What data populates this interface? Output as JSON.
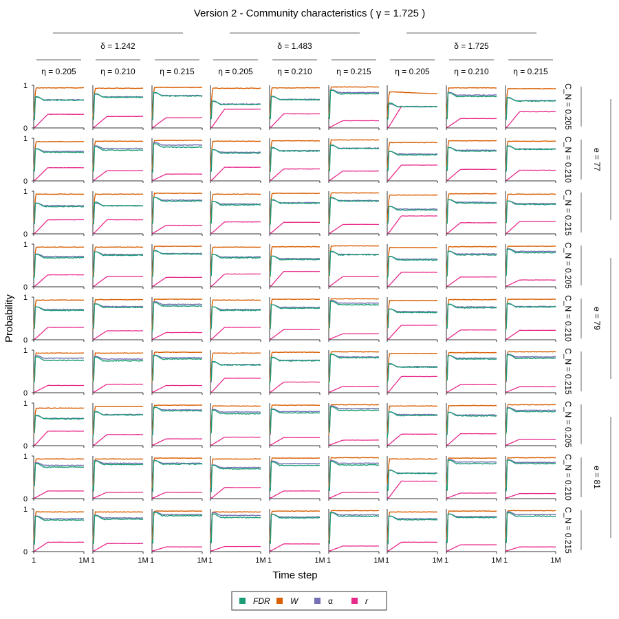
{
  "chart_data": {
    "type": "line",
    "title": "Version 2 - Community characteristics ( γ = 1.725 )",
    "xlabel": "Time step",
    "ylabel": "Probability",
    "x_ticks": [
      "1",
      "1M"
    ],
    "y_ticks": [
      "0",
      "1"
    ],
    "ylim": [
      0,
      1
    ],
    "col_groups": [
      {
        "label": "δ = 1.242",
        "cols": [
          0,
          1,
          2
        ]
      },
      {
        "label": "δ = 1.483",
        "cols": [
          3,
          4,
          5
        ]
      },
      {
        "label": "δ = 1.725",
        "cols": [
          6,
          7,
          8
        ]
      }
    ],
    "col_labels": [
      "η = 0.205",
      "η = 0.210",
      "η = 0.215",
      "η = 0.205",
      "η = 0.210",
      "η = 0.215",
      "η = 0.205",
      "η = 0.210",
      "η = 0.215"
    ],
    "row_labels": [
      "C_N = 0.205",
      "C_N = 0.210",
      "C_N = 0.215",
      "C_N = 0.205",
      "C_N = 0.210",
      "C_N = 0.215",
      "C_N = 0.205",
      "C_N = 0.210",
      "C_N = 0.215"
    ],
    "row_groups": [
      {
        "label": "e = 77",
        "rows": [
          0,
          1,
          2
        ]
      },
      {
        "label": "e = 79",
        "rows": [
          3,
          4,
          5
        ]
      },
      {
        "label": "e = 81",
        "rows": [
          6,
          7,
          8
        ]
      }
    ],
    "legend": {
      "placement": "bottom-center",
      "entries": [
        {
          "key": "fdr",
          "label": "FDR",
          "italic": true,
          "color": "#1b9e77"
        },
        {
          "key": "w",
          "label": "W",
          "italic": true,
          "color": "#d95f02"
        },
        {
          "key": "alpha",
          "label": "α",
          "italic": false,
          "color": "#7570b3"
        },
        {
          "key": "r",
          "label": "r",
          "italic": true,
          "color": "#e7298a"
        }
      ]
    },
    "series_note": "Each panel has four series vs time step (1 to 1M); steady-state values per panel below.",
    "panels": [
      {
        "row": 0,
        "col": 0,
        "W": 0.94,
        "alpha": 0.66,
        "fdr": 0.65,
        "r": 0.32
      },
      {
        "row": 0,
        "col": 1,
        "W": 0.93,
        "alpha": 0.73,
        "fdr": 0.72,
        "r": 0.27
      },
      {
        "row": 0,
        "col": 2,
        "W": 0.95,
        "alpha": 0.76,
        "fdr": 0.75,
        "r": 0.24
      },
      {
        "row": 0,
        "col": 3,
        "W": 0.93,
        "alpha": 0.56,
        "fdr": 0.55,
        "r": 0.44
      },
      {
        "row": 0,
        "col": 4,
        "W": 0.94,
        "alpha": 0.67,
        "fdr": 0.66,
        "r": 0.33
      },
      {
        "row": 0,
        "col": 5,
        "W": 0.96,
        "alpha": 0.83,
        "fdr": 0.8,
        "r": 0.17
      },
      {
        "row": 0,
        "col": 6,
        "W": 0.85,
        "alpha": 0.5,
        "fdr": 0.5,
        "r": 0.5
      },
      {
        "row": 0,
        "col": 7,
        "W": 0.94,
        "alpha": 0.77,
        "fdr": 0.74,
        "r": 0.22
      },
      {
        "row": 0,
        "col": 8,
        "W": 0.92,
        "alpha": 0.64,
        "fdr": 0.63,
        "r": 0.38
      },
      {
        "row": 1,
        "col": 0,
        "W": 0.92,
        "alpha": 0.69,
        "fdr": 0.67,
        "r": 0.31
      },
      {
        "row": 1,
        "col": 1,
        "W": 0.93,
        "alpha": 0.76,
        "fdr": 0.72,
        "r": 0.24
      },
      {
        "row": 1,
        "col": 2,
        "W": 0.95,
        "alpha": 0.84,
        "fdr": 0.79,
        "r": 0.16
      },
      {
        "row": 1,
        "col": 3,
        "W": 0.93,
        "alpha": 0.67,
        "fdr": 0.65,
        "r": 0.32
      },
      {
        "row": 1,
        "col": 4,
        "W": 0.94,
        "alpha": 0.71,
        "fdr": 0.7,
        "r": 0.28
      },
      {
        "row": 1,
        "col": 5,
        "W": 0.96,
        "alpha": 0.77,
        "fdr": 0.76,
        "r": 0.23
      },
      {
        "row": 1,
        "col": 6,
        "W": 0.9,
        "alpha": 0.63,
        "fdr": 0.61,
        "r": 0.37
      },
      {
        "row": 1,
        "col": 7,
        "W": 0.94,
        "alpha": 0.72,
        "fdr": 0.7,
        "r": 0.27
      },
      {
        "row": 1,
        "col": 8,
        "W": 0.93,
        "alpha": 0.75,
        "fdr": 0.74,
        "r": 0.25
      },
      {
        "row": 2,
        "col": 0,
        "W": 0.93,
        "alpha": 0.66,
        "fdr": 0.64,
        "r": 0.33
      },
      {
        "row": 2,
        "col": 1,
        "W": 0.93,
        "alpha": 0.66,
        "fdr": 0.66,
        "r": 0.33
      },
      {
        "row": 2,
        "col": 2,
        "W": 0.95,
        "alpha": 0.79,
        "fdr": 0.77,
        "r": 0.2
      },
      {
        "row": 2,
        "col": 3,
        "W": 0.93,
        "alpha": 0.7,
        "fdr": 0.68,
        "r": 0.28
      },
      {
        "row": 2,
        "col": 4,
        "W": 0.95,
        "alpha": 0.73,
        "fdr": 0.72,
        "r": 0.27
      },
      {
        "row": 2,
        "col": 5,
        "W": 0.96,
        "alpha": 0.78,
        "fdr": 0.77,
        "r": 0.22
      },
      {
        "row": 2,
        "col": 6,
        "W": 0.91,
        "alpha": 0.58,
        "fdr": 0.56,
        "r": 0.42
      },
      {
        "row": 2,
        "col": 7,
        "W": 0.94,
        "alpha": 0.74,
        "fdr": 0.72,
        "r": 0.26
      },
      {
        "row": 2,
        "col": 8,
        "W": 0.93,
        "alpha": 0.71,
        "fdr": 0.69,
        "r": 0.29
      },
      {
        "row": 3,
        "col": 0,
        "W": 0.93,
        "alpha": 0.71,
        "fdr": 0.68,
        "r": 0.28
      },
      {
        "row": 3,
        "col": 1,
        "W": 0.93,
        "alpha": 0.76,
        "fdr": 0.74,
        "r": 0.24
      },
      {
        "row": 3,
        "col": 2,
        "W": 0.95,
        "alpha": 0.78,
        "fdr": 0.77,
        "r": 0.22
      },
      {
        "row": 3,
        "col": 3,
        "W": 0.93,
        "alpha": 0.7,
        "fdr": 0.68,
        "r": 0.3
      },
      {
        "row": 3,
        "col": 4,
        "W": 0.94,
        "alpha": 0.66,
        "fdr": 0.64,
        "r": 0.36
      },
      {
        "row": 3,
        "col": 5,
        "W": 0.96,
        "alpha": 0.76,
        "fdr": 0.75,
        "r": 0.24
      },
      {
        "row": 3,
        "col": 6,
        "W": 0.92,
        "alpha": 0.65,
        "fdr": 0.63,
        "r": 0.34
      },
      {
        "row": 3,
        "col": 7,
        "W": 0.94,
        "alpha": 0.77,
        "fdr": 0.75,
        "r": 0.23
      },
      {
        "row": 3,
        "col": 8,
        "W": 0.95,
        "alpha": 0.83,
        "fdr": 0.8,
        "r": 0.16
      },
      {
        "row": 4,
        "col": 0,
        "W": 0.93,
        "alpha": 0.71,
        "fdr": 0.69,
        "r": 0.29
      },
      {
        "row": 4,
        "col": 1,
        "W": 0.94,
        "alpha": 0.78,
        "fdr": 0.76,
        "r": 0.21
      },
      {
        "row": 4,
        "col": 2,
        "W": 0.95,
        "alpha": 0.83,
        "fdr": 0.79,
        "r": 0.17
      },
      {
        "row": 4,
        "col": 3,
        "W": 0.93,
        "alpha": 0.71,
        "fdr": 0.69,
        "r": 0.29
      },
      {
        "row": 4,
        "col": 4,
        "W": 0.95,
        "alpha": 0.76,
        "fdr": 0.74,
        "r": 0.24
      },
      {
        "row": 4,
        "col": 5,
        "W": 0.96,
        "alpha": 0.86,
        "fdr": 0.82,
        "r": 0.14
      },
      {
        "row": 4,
        "col": 6,
        "W": 0.92,
        "alpha": 0.66,
        "fdr": 0.64,
        "r": 0.34
      },
      {
        "row": 4,
        "col": 7,
        "W": 0.94,
        "alpha": 0.77,
        "fdr": 0.75,
        "r": 0.23
      },
      {
        "row": 4,
        "col": 8,
        "W": 0.95,
        "alpha": 0.78,
        "fdr": 0.77,
        "r": 0.22
      },
      {
        "row": 5,
        "col": 0,
        "W": 0.93,
        "alpha": 0.81,
        "fdr": 0.76,
        "r": 0.17
      },
      {
        "row": 5,
        "col": 1,
        "W": 0.93,
        "alpha": 0.79,
        "fdr": 0.75,
        "r": 0.2
      },
      {
        "row": 5,
        "col": 2,
        "W": 0.95,
        "alpha": 0.82,
        "fdr": 0.79,
        "r": 0.17
      },
      {
        "row": 5,
        "col": 3,
        "W": 0.93,
        "alpha": 0.66,
        "fdr": 0.65,
        "r": 0.34
      },
      {
        "row": 5,
        "col": 4,
        "W": 0.95,
        "alpha": 0.76,
        "fdr": 0.75,
        "r": 0.25
      },
      {
        "row": 5,
        "col": 5,
        "W": 0.96,
        "alpha": 0.84,
        "fdr": 0.82,
        "r": 0.15
      },
      {
        "row": 5,
        "col": 6,
        "W": 0.92,
        "alpha": 0.61,
        "fdr": 0.6,
        "r": 0.38
      },
      {
        "row": 5,
        "col": 7,
        "W": 0.94,
        "alpha": 0.81,
        "fdr": 0.79,
        "r": 0.19
      },
      {
        "row": 5,
        "col": 8,
        "W": 0.96,
        "alpha": 0.84,
        "fdr": 0.81,
        "r": 0.14
      },
      {
        "row": 6,
        "col": 0,
        "W": 0.88,
        "alpha": 0.64,
        "fdr": 0.63,
        "r": 0.34
      },
      {
        "row": 6,
        "col": 1,
        "W": 0.92,
        "alpha": 0.73,
        "fdr": 0.72,
        "r": 0.26
      },
      {
        "row": 6,
        "col": 2,
        "W": 0.95,
        "alpha": 0.84,
        "fdr": 0.82,
        "r": 0.16
      },
      {
        "row": 6,
        "col": 3,
        "W": 0.93,
        "alpha": 0.79,
        "fdr": 0.75,
        "r": 0.2
      },
      {
        "row": 6,
        "col": 4,
        "W": 0.95,
        "alpha": 0.8,
        "fdr": 0.77,
        "r": 0.19
      },
      {
        "row": 6,
        "col": 5,
        "W": 0.96,
        "alpha": 0.87,
        "fdr": 0.83,
        "r": 0.13
      },
      {
        "row": 6,
        "col": 6,
        "W": 0.93,
        "alpha": 0.73,
        "fdr": 0.71,
        "r": 0.27
      },
      {
        "row": 6,
        "col": 7,
        "W": 0.94,
        "alpha": 0.72,
        "fdr": 0.7,
        "r": 0.28
      },
      {
        "row": 6,
        "col": 8,
        "W": 0.96,
        "alpha": 0.83,
        "fdr": 0.8,
        "r": 0.15
      },
      {
        "row": 7,
        "col": 0,
        "W": 0.93,
        "alpha": 0.78,
        "fdr": 0.74,
        "r": 0.18
      },
      {
        "row": 7,
        "col": 1,
        "W": 0.93,
        "alpha": 0.83,
        "fdr": 0.8,
        "r": 0.15
      },
      {
        "row": 7,
        "col": 2,
        "W": 0.95,
        "alpha": 0.83,
        "fdr": 0.81,
        "r": 0.15
      },
      {
        "row": 7,
        "col": 3,
        "W": 0.93,
        "alpha": 0.73,
        "fdr": 0.7,
        "r": 0.26
      },
      {
        "row": 7,
        "col": 4,
        "W": 0.95,
        "alpha": 0.82,
        "fdr": 0.78,
        "r": 0.18
      },
      {
        "row": 7,
        "col": 5,
        "W": 0.96,
        "alpha": 0.83,
        "fdr": 0.79,
        "r": 0.15
      },
      {
        "row": 7,
        "col": 6,
        "W": 0.93,
        "alpha": 0.6,
        "fdr": 0.59,
        "r": 0.41
      },
      {
        "row": 7,
        "col": 7,
        "W": 0.95,
        "alpha": 0.86,
        "fdr": 0.82,
        "r": 0.13
      },
      {
        "row": 7,
        "col": 8,
        "W": 0.96,
        "alpha": 0.85,
        "fdr": 0.82,
        "r": 0.12
      },
      {
        "row": 8,
        "col": 0,
        "W": 0.93,
        "alpha": 0.77,
        "fdr": 0.74,
        "r": 0.22
      },
      {
        "row": 8,
        "col": 1,
        "W": 0.93,
        "alpha": 0.79,
        "fdr": 0.76,
        "r": 0.19
      },
      {
        "row": 8,
        "col": 2,
        "W": 0.95,
        "alpha": 0.87,
        "fdr": 0.84,
        "r": 0.11
      },
      {
        "row": 8,
        "col": 3,
        "W": 0.93,
        "alpha": 0.85,
        "fdr": 0.8,
        "r": 0.12
      },
      {
        "row": 8,
        "col": 4,
        "W": 0.95,
        "alpha": 0.81,
        "fdr": 0.79,
        "r": 0.18
      },
      {
        "row": 8,
        "col": 5,
        "W": 0.96,
        "alpha": 0.86,
        "fdr": 0.83,
        "r": 0.13
      },
      {
        "row": 8,
        "col": 6,
        "W": 0.93,
        "alpha": 0.77,
        "fdr": 0.75,
        "r": 0.22
      },
      {
        "row": 8,
        "col": 7,
        "W": 0.95,
        "alpha": 0.82,
        "fdr": 0.8,
        "r": 0.16
      },
      {
        "row": 8,
        "col": 8,
        "W": 0.96,
        "alpha": 0.87,
        "fdr": 0.83,
        "r": 0.11
      }
    ]
  }
}
